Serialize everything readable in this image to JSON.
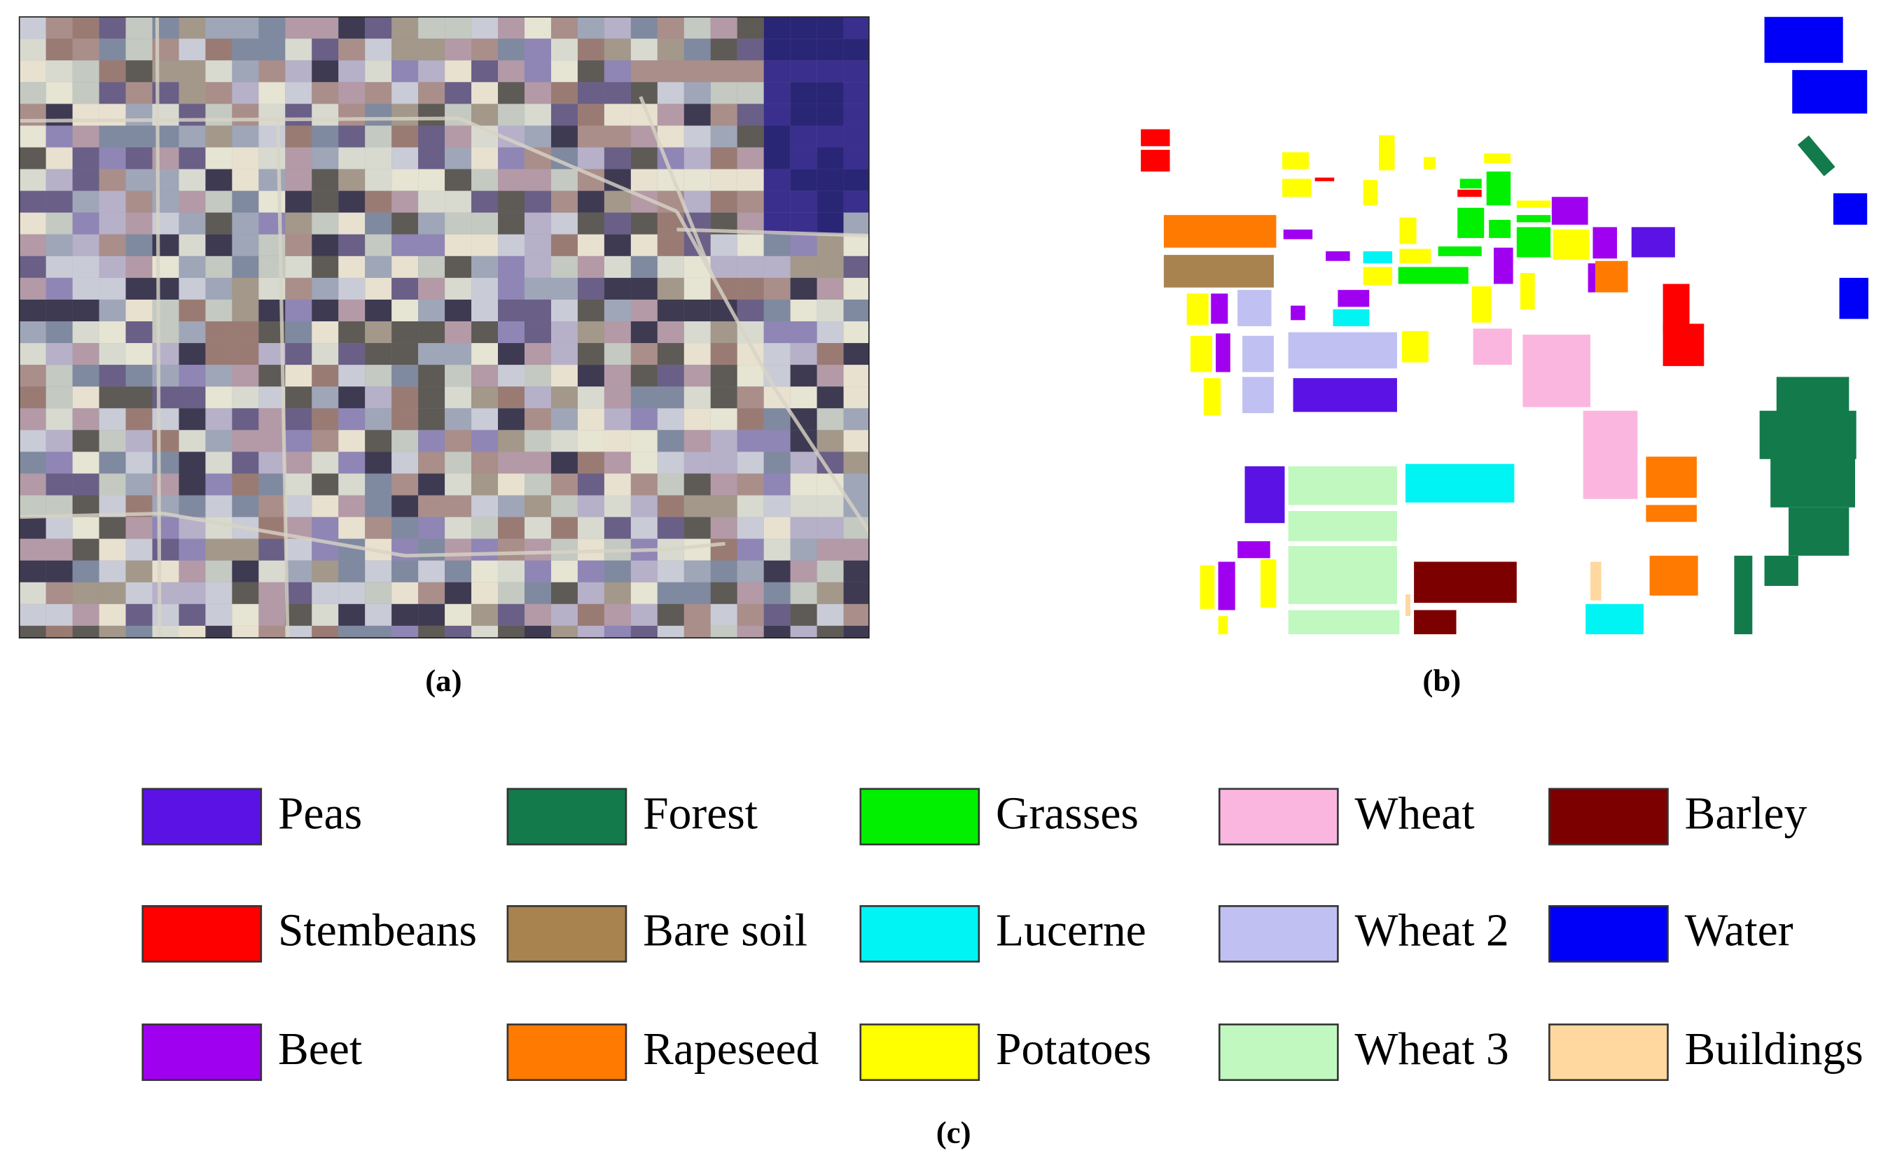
{
  "figure": {
    "panels": [
      {
        "caption": "(a)"
      },
      {
        "caption": "(b)"
      }
    ],
    "legend": {
      "caption": "(c)",
      "classes": [
        {
          "name": "Peas",
          "color": "#5b12e4"
        },
        {
          "name": "Forest",
          "color": "#137a4b"
        },
        {
          "name": "Grasses",
          "color": "#00f000"
        },
        {
          "name": "Wheat",
          "color": "#fbb6e0"
        },
        {
          "name": "Barley",
          "color": "#7c0000"
        },
        {
          "name": "Stembeans",
          "color": "#ff0000"
        },
        {
          "name": "Bare soil",
          "color": "#a8834f"
        },
        {
          "name": "Lucerne",
          "color": "#00f4f4"
        },
        {
          "name": "Wheat 2",
          "color": "#c0c0f2"
        },
        {
          "name": "Water",
          "color": "#0000f8"
        },
        {
          "name": "Beet",
          "color": "#a000f0"
        },
        {
          "name": "Rapeseed",
          "color": "#ff7a00"
        },
        {
          "name": "Potatoes",
          "color": "#ffff00"
        },
        {
          "name": "Wheat 3",
          "color": "#c0f8c0"
        },
        {
          "name": "Buildings",
          "color": "#ffd8a0"
        }
      ]
    }
  }
}
